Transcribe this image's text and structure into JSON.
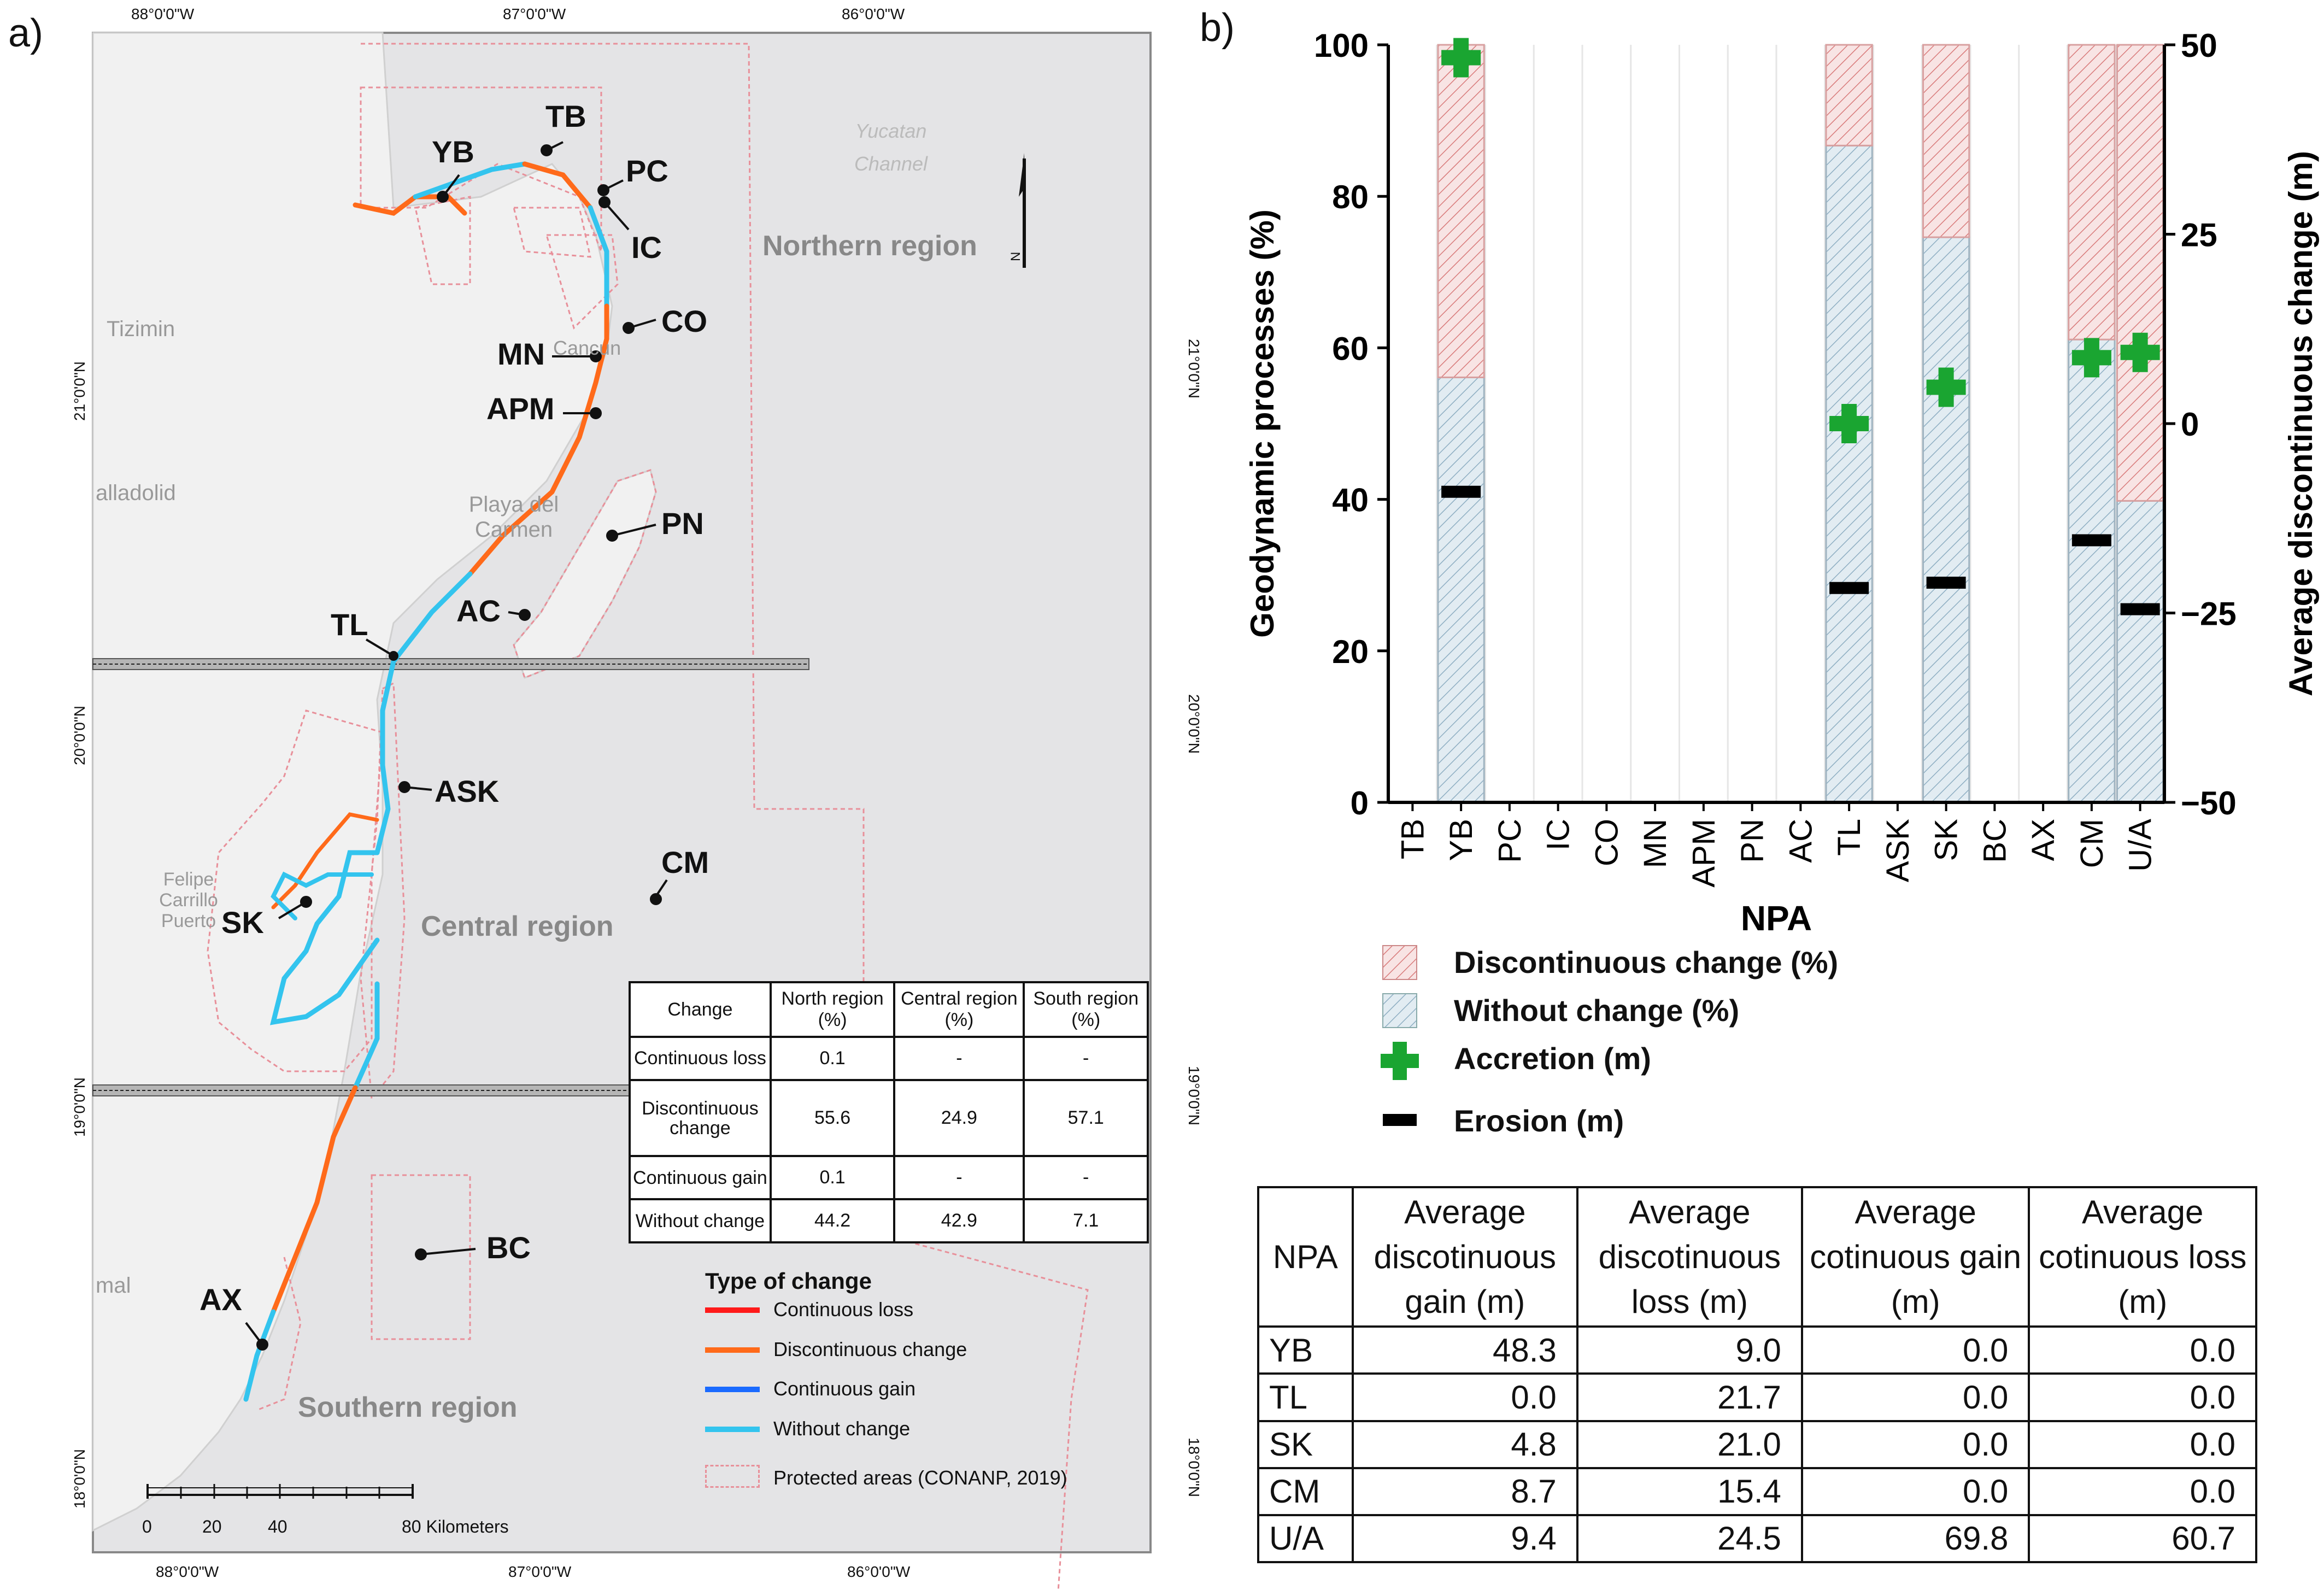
{
  "panel_a": {
    "label": "a)",
    "top_ticks": [
      "88°0'0\"W",
      "87°0'0\"W",
      "86°0'0\"W"
    ],
    "bottom_ticks": [
      "88°0'0\"W",
      "87°0'0\"W",
      "86°0'0\"W"
    ],
    "left_ticks": [
      "21°0'0\"N",
      "20°0'0\"N",
      "19°0'0\"N",
      "18°0'0\"N"
    ],
    "right_ticks": [
      "21°0'0\"N",
      "20°0'0\"N",
      "19°0'0\"N",
      "18°0'0\"N"
    ],
    "regions": [
      "Northern region",
      "Central region",
      "Southern region"
    ],
    "places": [
      "Tizimin",
      "alladolid",
      "Playa del Carmen",
      "Cancun",
      "Felipe Carrillo Puerto",
      "mal",
      "Yucatan Channel"
    ],
    "npa_labels": [
      "TB",
      "YB",
      "PC",
      "IC",
      "CO",
      "MN",
      "APM",
      "PN",
      "AC",
      "TL",
      "ASK",
      "SK",
      "CM",
      "BC",
      "AX"
    ],
    "north_symbol": "N",
    "scale_ticks": [
      "0",
      "20",
      "40",
      "80 Kilometers"
    ],
    "table": {
      "headers": [
        "Change",
        "North region (%)",
        "Central region (%)",
        "South region (%)"
      ],
      "rows": [
        {
          "change": "Continuous loss",
          "north": "0.1",
          "central": "-",
          "south": "-"
        },
        {
          "change": "Discontinuous change",
          "north": "55.6",
          "central": "24.9",
          "south": "57.1"
        },
        {
          "change": "Continuous gain",
          "north": "0.1",
          "central": "-",
          "south": "-"
        },
        {
          "change": "Without change",
          "north": "44.2",
          "central": "42.9",
          "south": "7.1"
        }
      ]
    },
    "legend": {
      "title": "Type of change",
      "items": [
        {
          "label": "Continuous loss",
          "color": "#ff1a1a"
        },
        {
          "label": "Discontinuous change",
          "color": "#ff6a1a"
        },
        {
          "label": "Continuous gain",
          "color": "#1a6aff"
        },
        {
          "label": "Without change",
          "color": "#33c4ee"
        },
        {
          "label": "Protected areas (CONANP, 2019)",
          "color": "#e8909a"
        }
      ]
    }
  },
  "panel_b": {
    "label": "b)",
    "legend": [
      {
        "label": "Discontinuous change (%)",
        "color": "#e8a0a0"
      },
      {
        "label": "Without change (%)",
        "color": "#a8c4d4"
      },
      {
        "label": "Accretion (m)",
        "color": "#1aa531"
      },
      {
        "label": "Erosion (m)",
        "color": "#000000"
      }
    ],
    "summary_table": {
      "headers": [
        "NPA",
        "Average discotinuous gain (m)",
        "Average discotinuous loss (m)",
        "Average cotinuous gain (m)",
        "Average cotinuous loss (m)"
      ],
      "rows": [
        [
          "YB",
          "48.3",
          "9.0",
          "0.0",
          "0.0"
        ],
        [
          "TL",
          "0.0",
          "21.7",
          "0.0",
          "0.0"
        ],
        [
          "SK",
          "4.8",
          "21.0",
          "0.0",
          "0.0"
        ],
        [
          "CM",
          "8.7",
          "15.4",
          "0.0",
          "0.0"
        ],
        [
          "U/A",
          "9.4",
          "24.5",
          "69.8",
          "60.7"
        ]
      ]
    }
  },
  "chart_data": {
    "type": "bar",
    "title": "",
    "xlabel": "NPA",
    "ylabel": "Geodynamic processes (%)",
    "y2label": "Average discontinuous change (m)",
    "categories": [
      "TB",
      "YB",
      "PC",
      "IC",
      "CO",
      "MN",
      "APM",
      "PN",
      "AC",
      "TL",
      "ASK",
      "SK",
      "BC",
      "AX",
      "CM",
      "U/A"
    ],
    "ylim": [
      0,
      100
    ],
    "y2lim": [
      -50,
      50
    ],
    "yticks": [
      "0",
      "20",
      "40",
      "60",
      "80",
      "100"
    ],
    "y2ticks": [
      "−50",
      "−25",
      "0",
      "25",
      "50"
    ],
    "stacked": true,
    "series": [
      {
        "name": "Without change (%)",
        "axis": "left",
        "values": [
          null,
          56.1,
          null,
          null,
          null,
          null,
          null,
          null,
          null,
          86.7,
          null,
          74.6,
          null,
          null,
          61.1,
          39.8
        ]
      },
      {
        "name": "Discontinuous change (%)",
        "axis": "left",
        "values": [
          null,
          43.9,
          null,
          null,
          null,
          null,
          null,
          null,
          null,
          13.3,
          null,
          25.4,
          null,
          null,
          38.9,
          60.2
        ]
      },
      {
        "name": "Accretion (m)",
        "axis": "right",
        "values": [
          null,
          48.3,
          null,
          null,
          null,
          null,
          null,
          null,
          null,
          0.0,
          null,
          4.8,
          null,
          null,
          8.7,
          9.4
        ]
      },
      {
        "name": "Erosion (m)",
        "axis": "right",
        "values": [
          null,
          -9.0,
          null,
          null,
          null,
          null,
          null,
          null,
          null,
          -21.7,
          null,
          -21.0,
          null,
          null,
          -15.4,
          -24.5
        ]
      }
    ]
  }
}
